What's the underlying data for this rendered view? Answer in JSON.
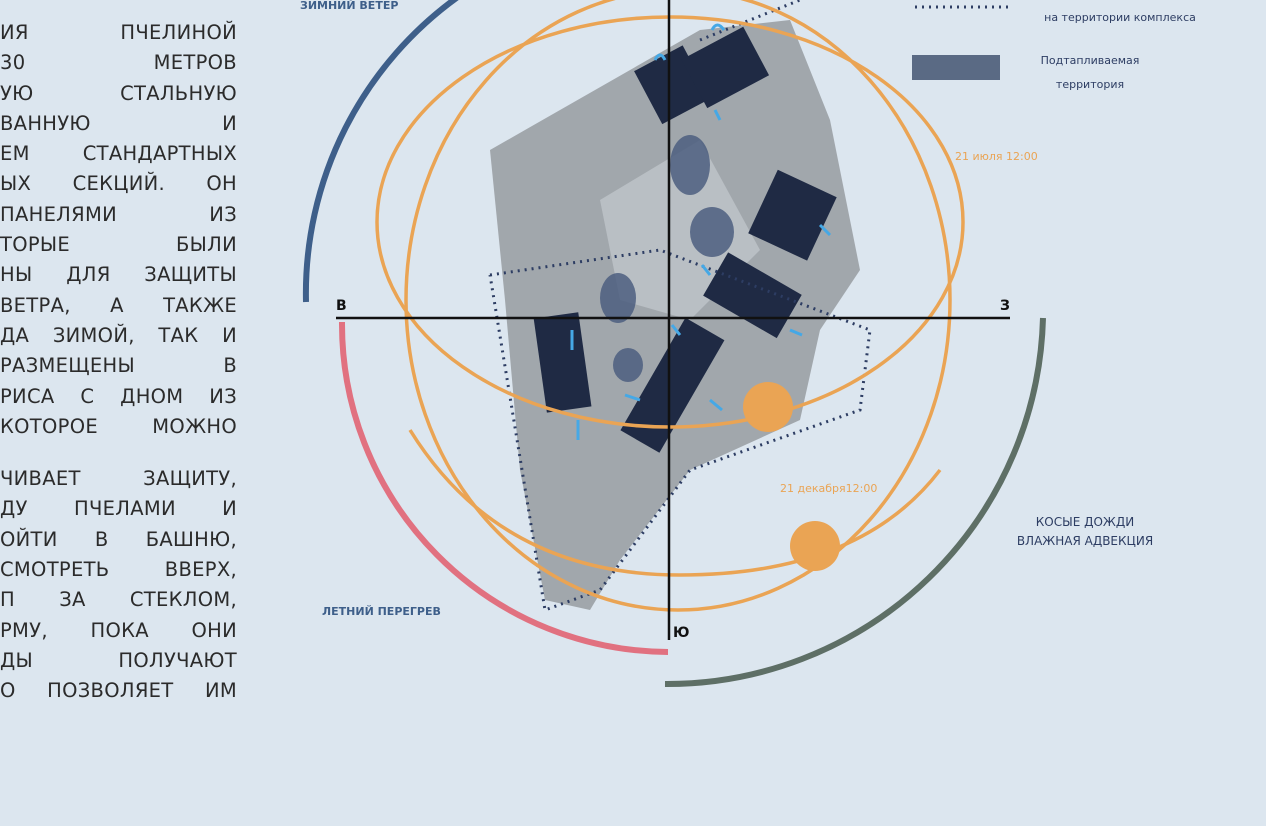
{
  "body_text": {
    "paragraph_1": [
      "ИЯ ПЧЕЛИНОЙ",
      "30 МЕТРОВ",
      "УЮ СТАЛЬНУЮ",
      "ВАННУЮ И",
      "ЕМ СТАНДАРТНЫХ",
      "ЫХ СЕКЦИЙ. ОН",
      "ПАНЕЛЯМИ ИЗ",
      "ТОРЫЕ БЫЛИ",
      "НЫ ДЛЯ ЗАЩИТЫ",
      "ВЕТРА, А ТАКЖЕ",
      "ДА ЗИМОЙ, ТАК И",
      "РАЗМЕЩЕНЫ В",
      "РИСА С ДНОМ ИЗ",
      "КОТОРОЕ МОЖНО"
    ],
    "paragraph_2": [
      "ЧИВАЕТ ЗАЩИТУ,",
      "ДУ ПЧЕЛАМИ И",
      "ОЙТИ В БАШНЮ,",
      "СМОТРЕТЬ ВВЕРХ,",
      "П ЗА СТЕКЛОМ,",
      "РМУ, ПОКА ОНИ",
      "ДЫ ПОЛУЧАЮТ",
      "О ПОЗВОЛЯЕТ ИМ"
    ]
  },
  "diagram": {
    "winter_wind": "ЗИМНИЙ ВЕТЕР",
    "summer_overheat": "ЛЕТНИЙ ПЕРЕГРЕВ",
    "rain": [
      "КОСЫЕ ДОЖДИ",
      "ВЛАЖНАЯ АДВЕКЦИЯ"
    ],
    "compass": {
      "west": "В",
      "east": "З",
      "south": "Ю"
    },
    "sun_july": "21 июля 12:00",
    "sun_december": "21 декабря12:00"
  },
  "legend": {
    "movement": "на территории комплекса",
    "flooded": [
      "Подтапливаемая",
      "территория"
    ]
  }
}
